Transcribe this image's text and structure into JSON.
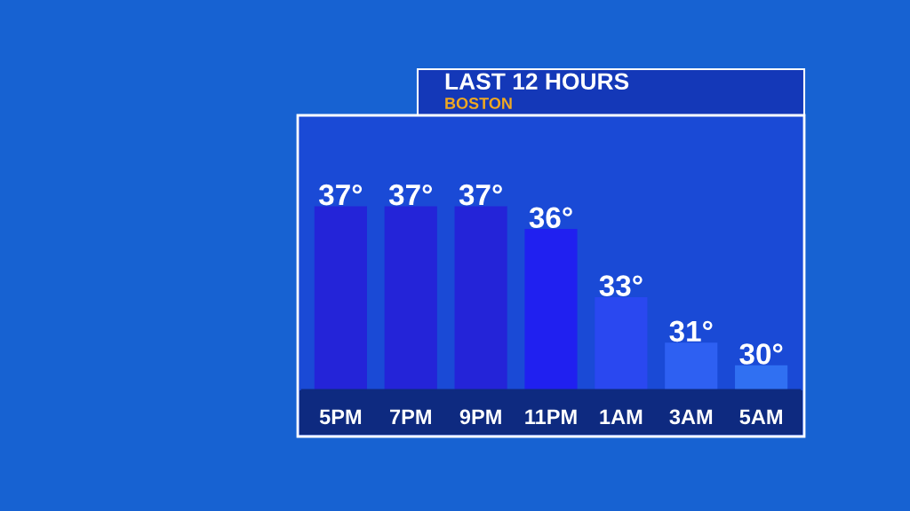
{
  "chart_data": {
    "type": "bar",
    "title": "LAST 12 HOURS",
    "subtitle": "BOSTON",
    "categories": [
      "5PM",
      "7PM",
      "9PM",
      "11PM",
      "1AM",
      "3AM",
      "5AM"
    ],
    "values": [
      37,
      37,
      37,
      36,
      33,
      31,
      30
    ],
    "colors": [
      "#2424d8",
      "#2424d8",
      "#2424d8",
      "#2020f0",
      "#2a48f0",
      "#2e60f2",
      "#3070f2"
    ],
    "value_labels": [
      "37°",
      "37°",
      "37°",
      "36°",
      "33°",
      "31°",
      "30°"
    ],
    "ylim": [
      28.9,
      41
    ],
    "tick_labels": "x",
    "grid": false
  }
}
